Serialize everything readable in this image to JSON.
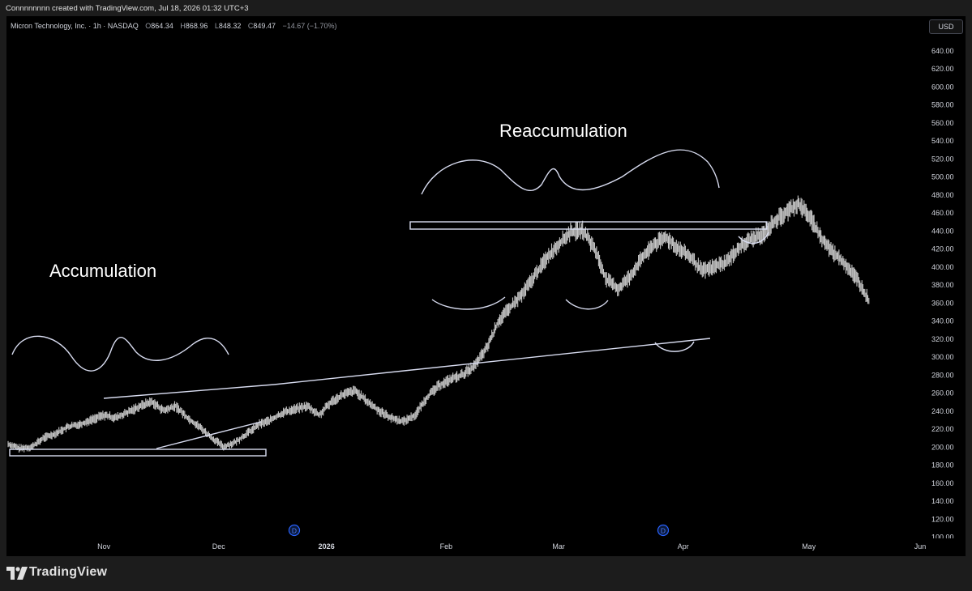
{
  "header": {
    "text": "Connnnnnnn created with TradingView.com, Jul 18, 2026 01:32 UTC+3"
  },
  "legend": {
    "symbol": "Micron Technology, Inc. · 1h · NASDAQ",
    "open_label": "O",
    "open": "864.34",
    "high_label": "H",
    "high": "868.96",
    "low_label": "L",
    "low": "848.32",
    "close_label": "C",
    "close": "849.47",
    "change": "−14.67 (−1.70%)"
  },
  "currency_button": "USD",
  "footer": {
    "brand": "TradingView"
  },
  "colors": {
    "background": "#000000",
    "candles": "#c8c8c8",
    "drawings": "#d8dcf0",
    "dividend_marker": "#2962ff"
  },
  "chart_data": {
    "type": "line",
    "style": "candlestick-like price series (hourly)",
    "symbol": "Micron Technology, Inc.",
    "interval": "1h",
    "exchange": "NASDAQ",
    "ylim": [
      100,
      660
    ],
    "y_ticks": [
      "640.00",
      "620.00",
      "600.00",
      "580.00",
      "560.00",
      "540.00",
      "520.00",
      "500.00",
      "480.00",
      "460.00",
      "440.00",
      "420.00",
      "400.00",
      "380.00",
      "360.00",
      "340.00",
      "320.00",
      "300.00",
      "280.00",
      "260.00",
      "240.00",
      "220.00",
      "200.00",
      "180.00",
      "160.00",
      "140.00",
      "120.00",
      "100.00"
    ],
    "x_ticks": [
      "Nov",
      "Dec",
      "2026",
      "Feb",
      "Mar",
      "Apr",
      "May",
      "Jun"
    ],
    "x_tick_index": [
      8.0,
      17.6,
      26.6,
      36.6,
      46.0,
      56.4,
      66.9,
      76.2
    ],
    "x": [
      0,
      1,
      2,
      3,
      4,
      5,
      6,
      7,
      8,
      9,
      10,
      11,
      12,
      13,
      14,
      15,
      16,
      17,
      18,
      19,
      20,
      21,
      22,
      23,
      24,
      25,
      26,
      27,
      28,
      29,
      30,
      31,
      32,
      33,
      34,
      35,
      36,
      37,
      38,
      39,
      40,
      41,
      42,
      43,
      44,
      45,
      46,
      47,
      48,
      49,
      50,
      51,
      52,
      53,
      54,
      55,
      56,
      57,
      58,
      59,
      60,
      61,
      62,
      63,
      64,
      65,
      66,
      67,
      68,
      69,
      70,
      71,
      72
    ],
    "series": [
      {
        "values": [
          203,
          198,
          200,
          210,
          215,
          222,
          225,
          230,
          235,
          232,
          238,
          245,
          250,
          240,
          245,
          232,
          222,
          210,
          200,
          205,
          215,
          225,
          230,
          238,
          242,
          245,
          235,
          250,
          258,
          262,
          250,
          240,
          232,
          228,
          235,
          255,
          268,
          275,
          280,
          290,
          310,
          340,
          355,
          370,
          390,
          410,
          425,
          438,
          440,
          420,
          385,
          375,
          390,
          410,
          425,
          432,
          420,
          410,
          395,
          400,
          405,
          420,
          430,
          435,
          450,
          460,
          470,
          455,
          430,
          415,
          402,
          385,
          360
        ]
      }
    ],
    "annotations": {
      "texts": [
        "Accumulation",
        "Reaccumulation"
      ],
      "dividend_markers": [
        "D",
        "D"
      ],
      "drawings": [
        "accumulation support box (~190)",
        "accumulation upper trendline",
        "accumulation rising lower trendline",
        "wave curve over accumulation",
        "reaccumulation resistance box (~443)",
        "long rising trendline from Dec to Apr",
        "wave curve over reaccumulation",
        "lower cup arcs under reaccumulation lows"
      ]
    }
  }
}
